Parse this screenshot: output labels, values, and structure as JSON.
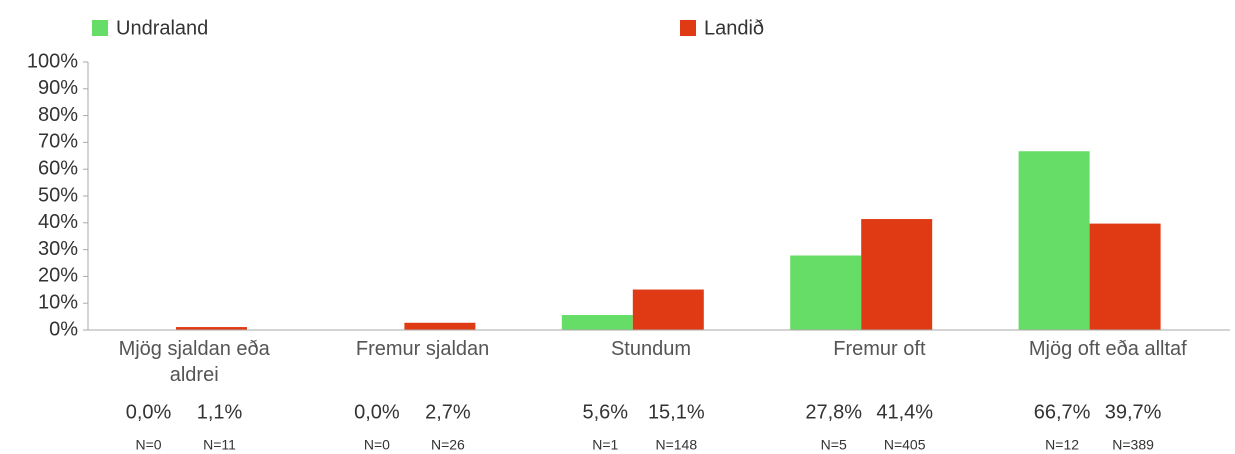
{
  "chart_data": {
    "type": "bar",
    "categories": [
      "Mjög sjaldan eða aldrei",
      "Fremur sjaldan",
      "Stundum",
      "Fremur oft",
      "Mjög oft eða alltaf"
    ],
    "series": [
      {
        "name": "Undraland",
        "color": "#66dd66",
        "values": [
          0.0,
          0.0,
          5.6,
          27.8,
          66.7
        ],
        "value_labels": [
          "0,0%",
          "0,0%",
          "5,6%",
          "27,8%",
          "66,7%"
        ],
        "n_labels": [
          "N=0",
          "N=0",
          "N=1",
          "N=5",
          "N=12"
        ]
      },
      {
        "name": "Landið",
        "color": "#e03a14",
        "values": [
          1.1,
          2.7,
          15.1,
          41.4,
          39.7
        ],
        "value_labels": [
          "1,1%",
          "2,7%",
          "15,1%",
          "41,4%",
          "39,7%"
        ],
        "n_labels": [
          "N=11",
          "N=26",
          "N=148",
          "N=405",
          "N=389"
        ]
      }
    ],
    "ylim": [
      0,
      100
    ],
    "yticks": [
      {
        "value": 0,
        "label": "0%"
      },
      {
        "value": 10,
        "label": "10%"
      },
      {
        "value": 20,
        "label": "20%"
      },
      {
        "value": 30,
        "label": "30%"
      },
      {
        "value": 40,
        "label": "40%"
      },
      {
        "value": 50,
        "label": "50%"
      },
      {
        "value": 60,
        "label": "60%"
      },
      {
        "value": 70,
        "label": "70%"
      },
      {
        "value": 80,
        "label": "80%"
      },
      {
        "value": 90,
        "label": "90%"
      },
      {
        "value": 100,
        "label": "100%"
      }
    ],
    "legend": "top"
  }
}
